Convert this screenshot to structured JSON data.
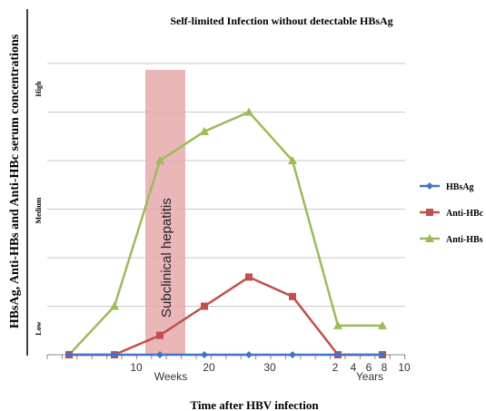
{
  "chart_data": {
    "type": "line",
    "title": "Self-limited Infection without detectable HBsAg",
    "xlabel": "Time after HBV infection",
    "ylabel": "HBsAg, Anti-HBs and Anti-HBc serum concentrations",
    "y_levels": [
      "High",
      "Medium",
      "Low"
    ],
    "x_units": [
      "Weeks",
      "Years"
    ],
    "x_ticks": [
      "10",
      "20",
      "30",
      "2",
      "4",
      "6",
      "8",
      "10"
    ],
    "x": [
      0,
      1,
      2,
      3,
      4,
      5,
      6,
      7,
      8
    ],
    "ylim": [
      0,
      6
    ],
    "grid": "horizontal",
    "legend_position": "right",
    "series": [
      {
        "name": "HBsAg",
        "color": "#4472C4",
        "marker": "diamond",
        "values": [
          0,
          0,
          0,
          0,
          0,
          0,
          0,
          0,
          0
        ]
      },
      {
        "name": "Anti-HBc",
        "color": "#C0504D",
        "marker": "square",
        "values": [
          0,
          0,
          0.4,
          1.0,
          1.6,
          1.2,
          0,
          0,
          0
        ]
      },
      {
        "name": "Anti-HBs",
        "color": "#9BBB59",
        "marker": "triangle",
        "values": [
          0,
          1.0,
          4.0,
          4.6,
          5.0,
          4.0,
          0.6,
          0.6,
          0.6
        ]
      }
    ],
    "annotation": {
      "label": "Subclinical hepatitis",
      "x_range": [
        1.7,
        2.55
      ],
      "color": "#E8A9AB"
    }
  }
}
